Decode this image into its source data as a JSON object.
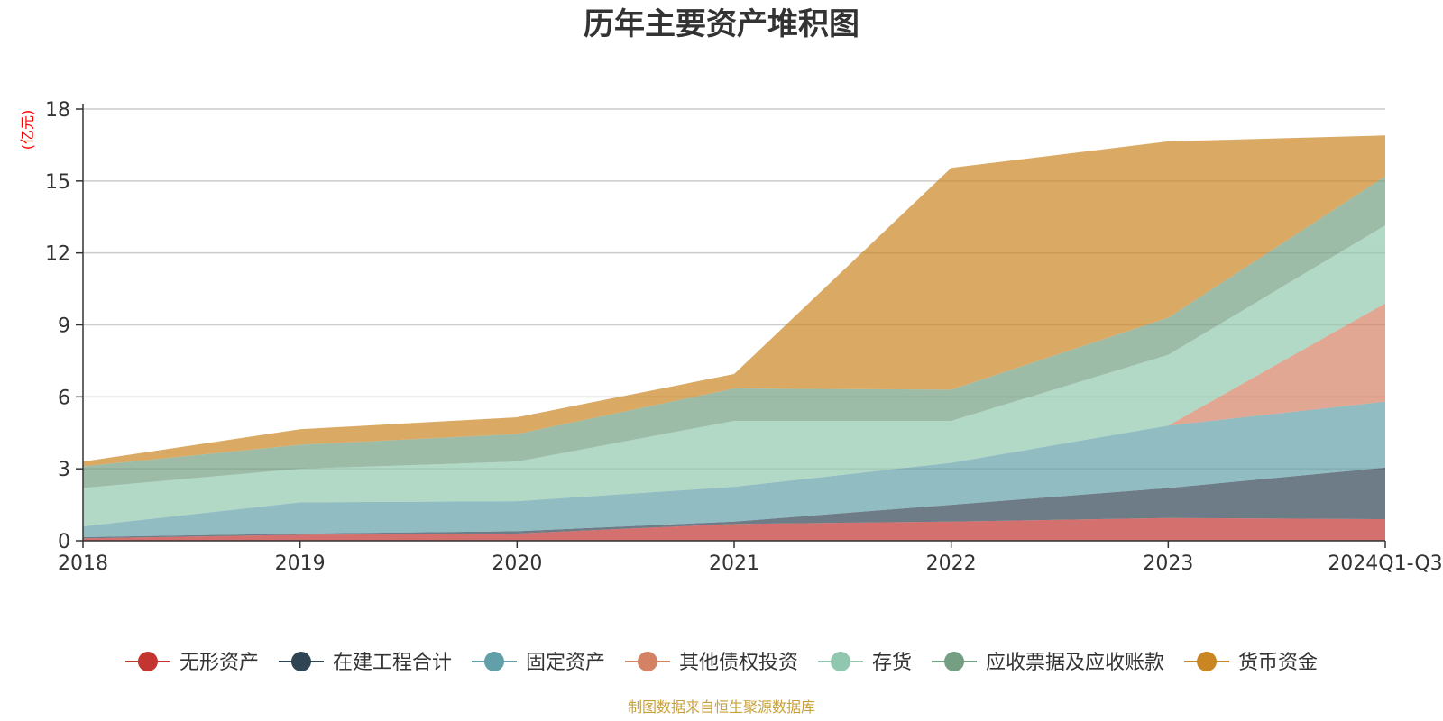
{
  "chart_data": {
    "type": "area",
    "stacked": true,
    "title": "历年主要资产堆积图",
    "unit_label": "(亿元)",
    "categories": [
      "2018",
      "2019",
      "2020",
      "2021",
      "2022",
      "2023",
      "2024Q1-Q3"
    ],
    "ylim": [
      0,
      18
    ],
    "yticks": [
      "0",
      "3",
      "6",
      "9",
      "12",
      "15",
      "18"
    ],
    "grid": true,
    "legend_position": "bottom",
    "series": [
      {
        "name": "无形资产",
        "color": "#c23531",
        "values": [
          0.1,
          0.25,
          0.3,
          0.7,
          0.8,
          0.95,
          0.9
        ]
      },
      {
        "name": "在建工程合计",
        "color": "#2f4554",
        "values": [
          0.05,
          0.05,
          0.1,
          0.1,
          0.7,
          1.25,
          2.15
        ]
      },
      {
        "name": "固定资产",
        "color": "#61a0a8",
        "values": [
          0.45,
          1.3,
          1.25,
          1.45,
          1.75,
          2.6,
          2.75
        ]
      },
      {
        "name": "其他债权投资",
        "color": "#d48265",
        "values": [
          0,
          0,
          0,
          0,
          0,
          0,
          4.1
        ]
      },
      {
        "name": "存货",
        "color": "#91c7ae",
        "values": [
          1.6,
          1.4,
          1.65,
          2.75,
          1.75,
          2.95,
          3.25
        ]
      },
      {
        "name": "应收票据及应收账款",
        "color": "#749f83",
        "values": [
          0.9,
          1.0,
          1.15,
          1.35,
          1.3,
          1.55,
          2.05
        ]
      },
      {
        "name": "货币资金",
        "color": "#ca8622",
        "values": [
          0.2,
          0.65,
          0.7,
          0.6,
          9.25,
          7.35,
          1.7
        ]
      }
    ],
    "source_text": "制图数据来自恒生聚源数据库"
  },
  "colors": {
    "unit_label": "#ff0000",
    "source_text": "#c9a13c",
    "axis": "#333333",
    "grid": "#cccccc"
  }
}
